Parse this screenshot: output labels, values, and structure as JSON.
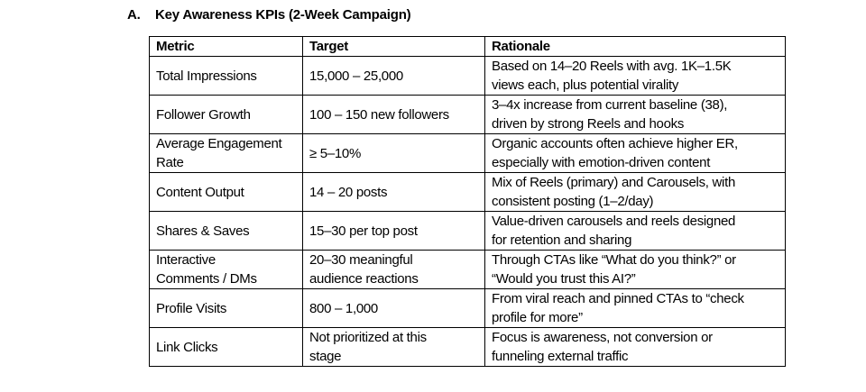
{
  "section": {
    "number": "A.",
    "title": "Key Awareness KPIs (2-Week Campaign)"
  },
  "table": {
    "headers": [
      "Metric",
      "Target",
      "Rationale"
    ],
    "rows": [
      {
        "metric": [
          "Total Impressions"
        ],
        "target": [
          "15,000 – 25,000"
        ],
        "rationale": [
          "Based on 14–20 Reels with avg. 1K–1.5K",
          "views each, plus potential virality"
        ]
      },
      {
        "metric": [
          "Follower Growth"
        ],
        "target": [
          "100 – 150 new followers"
        ],
        "rationale": [
          "3–4x increase from current baseline (38),",
          "driven by strong Reels and hooks"
        ]
      },
      {
        "metric": [
          "Average Engagement",
          "Rate"
        ],
        "target": [
          "≥ 5–10%"
        ],
        "rationale": [
          "Organic accounts often achieve higher ER,",
          "especially with emotion-driven content"
        ]
      },
      {
        "metric": [
          "Content Output"
        ],
        "target": [
          "14 – 20 posts"
        ],
        "rationale": [
          "Mix of Reels (primary) and Carousels, with",
          "consistent posting (1–2/day)"
        ]
      },
      {
        "metric": [
          "Shares & Saves"
        ],
        "target": [
          "15–30 per top post"
        ],
        "rationale": [
          "Value-driven carousels and reels designed",
          "for retention and sharing"
        ]
      },
      {
        "metric": [
          "Interactive",
          "Comments / DMs"
        ],
        "target": [
          "20–30 meaningful",
          "audience reactions"
        ],
        "rationale": [
          "Through CTAs like “What do you think?” or",
          "“Would you trust this AI?”"
        ]
      },
      {
        "metric": [
          "Profile Visits"
        ],
        "target": [
          "800 – 1,000"
        ],
        "rationale": [
          "From viral reach and pinned CTAs to “check",
          "profile for more”"
        ]
      },
      {
        "metric": [
          "Link Clicks"
        ],
        "target": [
          "Not prioritized at this",
          "stage"
        ],
        "rationale": [
          "Focus is awareness, not conversion or",
          "funneling external traffic"
        ]
      }
    ]
  }
}
